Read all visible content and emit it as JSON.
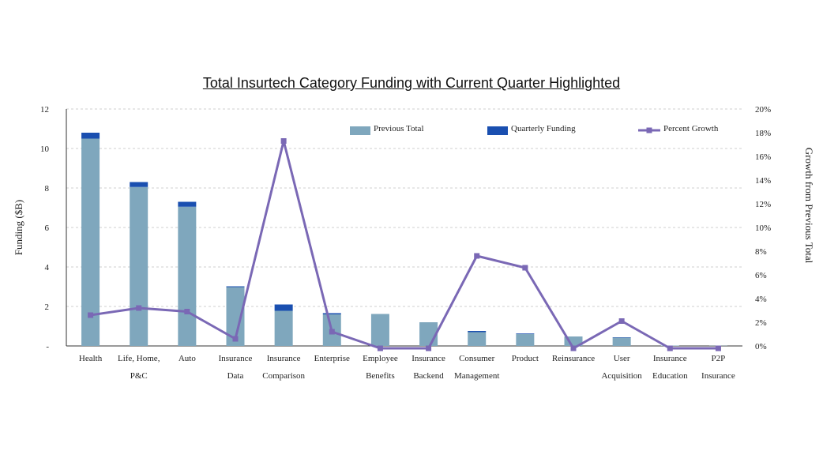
{
  "chart_data": {
    "type": "bar",
    "title": "Total Insurtech Category Funding with Current Quarter Highlighted",
    "ylabel": "Funding ($B)",
    "y2label": "Growth from Previous Total",
    "ylim": [
      0,
      12
    ],
    "y2lim": [
      0,
      20
    ],
    "yticks": [
      "-",
      "2",
      "4",
      "6",
      "8",
      "10",
      "12"
    ],
    "y2ticks": [
      "0%",
      "2%",
      "4%",
      "6%",
      "8%",
      "10%",
      "12%",
      "14%",
      "16%",
      "18%",
      "20%"
    ],
    "grid": true,
    "stacked": true,
    "legend_position": "top",
    "categories": [
      [
        "Health"
      ],
      [
        "Life, Home,",
        "P&C"
      ],
      [
        "Auto"
      ],
      [
        "Insurance",
        "Data"
      ],
      [
        "Insurance",
        "Comparison"
      ],
      [
        "Enterprise"
      ],
      [
        "Employee",
        "Benefits"
      ],
      [
        "Insurance",
        "Backend"
      ],
      [
        "Consumer",
        "Management"
      ],
      [
        "Product"
      ],
      [
        "Reinsurance"
      ],
      [
        "User",
        "Acquisition"
      ],
      [
        "Insurance",
        "Education"
      ],
      [
        "P2P",
        "Insurance"
      ]
    ],
    "series": [
      {
        "name": "Previous Total",
        "kind": "bar",
        "color": "#7fa7bd",
        "values": [
          10.5,
          8.05,
          7.05,
          2.98,
          1.78,
          1.6,
          1.62,
          1.2,
          0.7,
          0.6,
          0.48,
          0.42,
          0.02,
          0.01
        ]
      },
      {
        "name": "Quarterly Funding",
        "kind": "bar",
        "color": "#1a4fb0",
        "values": [
          0.3,
          0.25,
          0.25,
          0.04,
          0.32,
          0.06,
          0.0,
          0.0,
          0.06,
          0.03,
          0.0,
          0.02,
          0.0,
          0.0
        ]
      },
      {
        "name": "Percent Growth",
        "kind": "line",
        "axis": "right",
        "color": "#7a68b5",
        "values": [
          2.6,
          3.2,
          2.9,
          0.6,
          17.3,
          1.2,
          -0.2,
          -0.2,
          7.6,
          6.6,
          -0.2,
          2.1,
          -0.2,
          -0.2
        ]
      }
    ]
  }
}
